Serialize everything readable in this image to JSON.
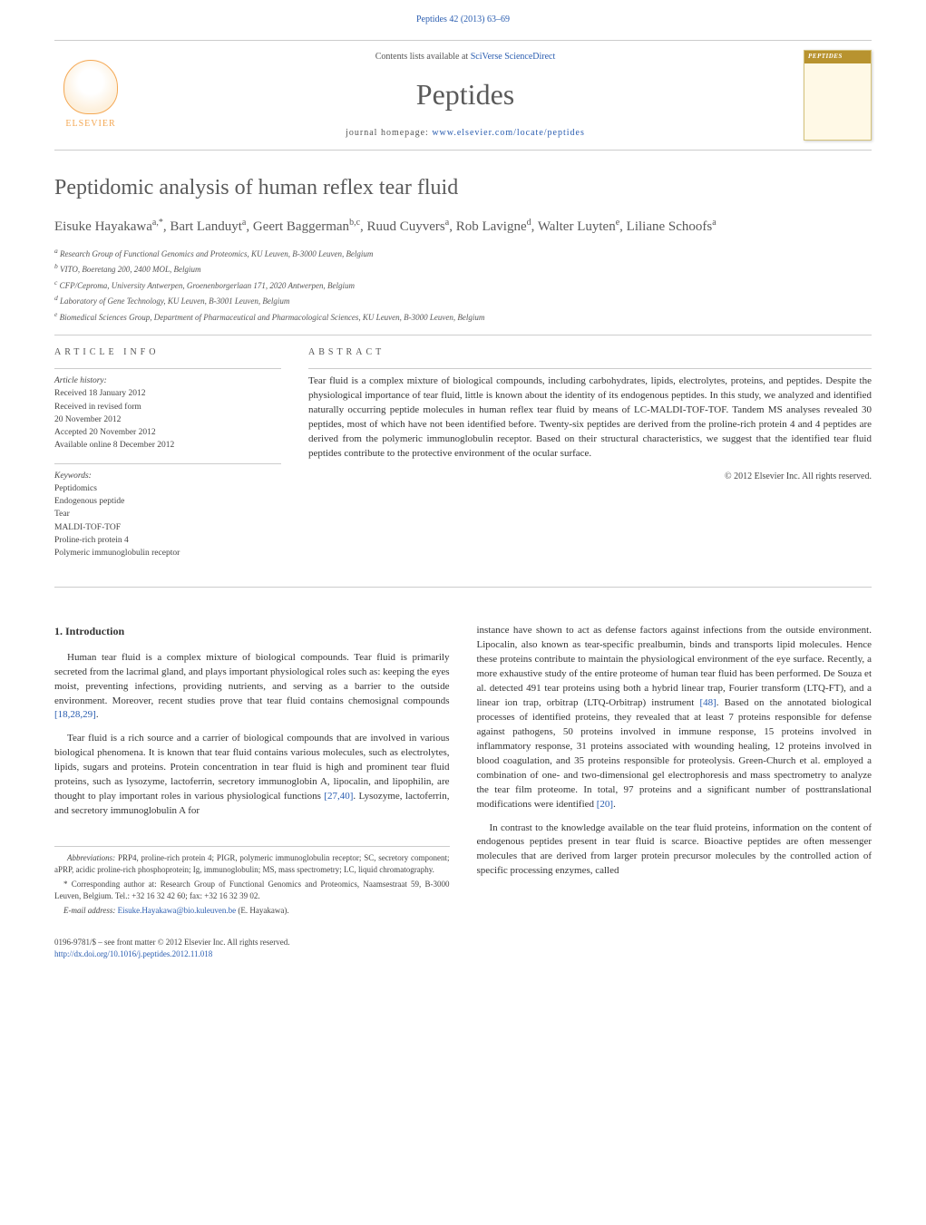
{
  "header": {
    "citation": "Peptides 42 (2013) 63–69",
    "contents_prefix": "Contents lists available at ",
    "contents_link": "SciVerse ScienceDirect",
    "journal_name": "Peptides",
    "homepage_label": "journal homepage: ",
    "homepage_url": "www.elsevier.com/locate/peptides",
    "cover_title": "PEPTIDES",
    "elsevier": "ELSEVIER"
  },
  "article": {
    "title": "Peptidomic analysis of human reflex tear fluid",
    "authors_html": "Eisuke Hayakawa<sup>a,*</sup>, Bart Landuyt<sup>a</sup>, Geert Baggerman<sup>b,c</sup>, Ruud Cuyvers<sup>a</sup>, Rob Lavigne<sup>d</sup>, Walter Luyten<sup>e</sup>, Liliane Schoofs<sup>a</sup>",
    "affiliations": [
      "a Research Group of Functional Genomics and Proteomics, KU Leuven, B-3000 Leuven, Belgium",
      "b VITO, Boeretang 200, 2400 MOL, Belgium",
      "c CFP/Ceproma, University Antwerpen, Groenenborgerlaan 171, 2020 Antwerpen, Belgium",
      "d Laboratory of Gene Technology, KU Leuven, B-3001 Leuven, Belgium",
      "e Biomedical Sciences Group, Department of Pharmaceutical and Pharmacological Sciences, KU Leuven, B-3000 Leuven, Belgium"
    ]
  },
  "info": {
    "label": "ARTICLE INFO",
    "history_label": "Article history:",
    "history": [
      "Received 18 January 2012",
      "Received in revised form",
      "20 November 2012",
      "Accepted 20 November 2012",
      "Available online 8 December 2012"
    ],
    "keywords_label": "Keywords:",
    "keywords": [
      "Peptidomics",
      "Endogenous peptide",
      "Tear",
      "MALDI-TOF-TOF",
      "Proline-rich protein 4",
      "Polymeric immunoglobulin receptor"
    ]
  },
  "abstract": {
    "label": "ABSTRACT",
    "text": "Tear fluid is a complex mixture of biological compounds, including carbohydrates, lipids, electrolytes, proteins, and peptides. Despite the physiological importance of tear fluid, little is known about the identity of its endogenous peptides. In this study, we analyzed and identified naturally occurring peptide molecules in human reflex tear fluid by means of LC-MALDI-TOF-TOF. Tandem MS analyses revealed 30 peptides, most of which have not been identified before. Twenty-six peptides are derived from the proline-rich protein 4 and 4 peptides are derived from the polymeric immunoglobulin receptor. Based on their structural characteristics, we suggest that the identified tear fluid peptides contribute to the protective environment of the ocular surface.",
    "copyright": "© 2012 Elsevier Inc. All rights reserved."
  },
  "body": {
    "section1_title": "1. Introduction",
    "col1_p1": "Human tear fluid is a complex mixture of biological compounds. Tear fluid is primarily secreted from the lacrimal gland, and plays important physiological roles such as: keeping the eyes moist, preventing infections, providing nutrients, and serving as a barrier to the outside environment. Moreover, recent studies prove that tear fluid contains chemosignal compounds ",
    "col1_p1_ref": "[18,28,29]",
    "col1_p2a": "Tear fluid is a rich source and a carrier of biological compounds that are involved in various biological phenomena. It is known that tear fluid contains various molecules, such as electrolytes, lipids, sugars and proteins. Protein concentration in tear fluid is high and prominent tear fluid proteins, such as lysozyme, lactoferrin, secretory immunoglobin A, lipocalin, and lipophilin, are thought to play important roles in various physiological functions ",
    "col1_p2_ref": "[27,40]",
    "col1_p2b": ". Lysozyme, lactoferrin, and secretory immunoglobulin A for",
    "col2_p1a": "instance have shown to act as defense factors against infections from the outside environment. Lipocalin, also known as tear-specific prealbumin, binds and transports lipid molecules. Hence these proteins contribute to maintain the physiological environment of the eye surface. Recently, a more exhaustive study of the entire proteome of human tear fluid has been performed. De Souza et al. detected 491 tear proteins using both a hybrid linear trap, Fourier transform (LTQ-FT), and a linear ion trap, orbitrap (LTQ-Orbitrap) instrument ",
    "col2_p1_ref1": "[48]",
    "col2_p1b": ". Based on the annotated biological processes of identified proteins, they revealed that at least 7 proteins responsible for defense against pathogens, 50 proteins involved in immune response, 15 proteins involved in inflammatory response, 31 proteins associated with wounding healing, 12 proteins involved in blood coagulation, and 35 proteins responsible for proteolysis. Green-Church et al. employed a combination of one- and two-dimensional gel electrophoresis and mass spectrometry to analyze the tear film proteome. In total, 97 proteins and a significant number of posttranslational modifications were identified ",
    "col2_p1_ref2": "[20]",
    "col2_p2": "In contrast to the knowledge available on the tear fluid proteins, information on the content of endogenous peptides present in tear fluid is scarce. Bioactive peptides are often messenger molecules that are derived from larger protein precursor molecules by the controlled action of specific processing enzymes, called"
  },
  "footnotes": {
    "abbrev_label": "Abbreviations:",
    "abbrev": " PRP4, proline-rich protein 4; PIGR, polymeric immunoglobulin receptor; SC, secretory component; aPRP, acidic proline-rich phosphoprotein; Ig, immunoglobulin; MS, mass spectrometry; LC, liquid chromatography.",
    "corr": "* Corresponding author at: Research Group of Functional Genomics and Proteomics, Naamsestraat 59, B-3000 Leuven, Belgium. Tel.: +32 16 32 42 60; fax: +32 16 32 39 02.",
    "email_label": "E-mail address: ",
    "email": "Eisuke.Hayakawa@bio.kuleuven.be",
    "email_suffix": " (E. Hayakawa)."
  },
  "footer": {
    "line1": "0196-9781/$ – see front matter © 2012 Elsevier Inc. All rights reserved.",
    "doi": "http://dx.doi.org/10.1016/j.peptides.2012.11.018"
  },
  "colors": {
    "link": "#2a5db0",
    "heading": "#5a5a5a",
    "elsevier": "#f4a854",
    "cover_bg": "#fff9e6",
    "cover_bar": "#b8932f"
  }
}
